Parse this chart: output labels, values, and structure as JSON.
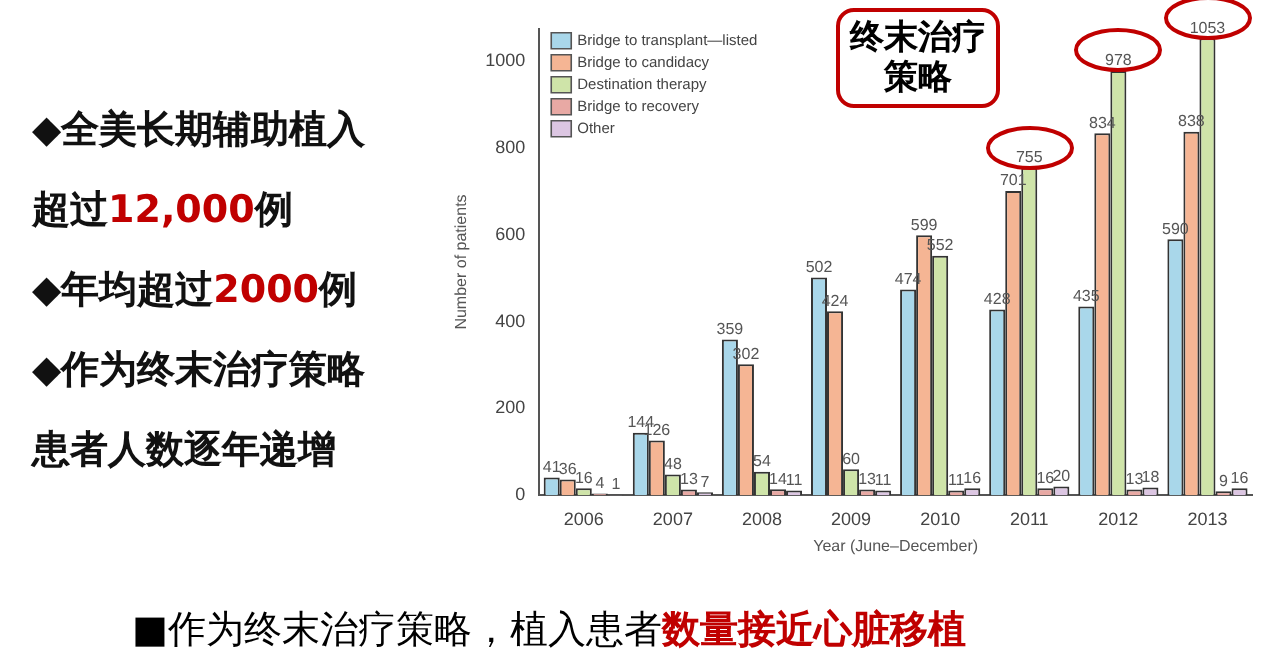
{
  "chart_data": {
    "type": "bar",
    "xlabel": "Year (June–December)",
    "ylabel": "Number of patients",
    "categories": [
      "2006",
      "2007",
      "2008",
      "2009",
      "2010",
      "2011",
      "2012",
      "2013"
    ],
    "series": [
      {
        "name": "Bridge to transplant—listed",
        "color": "#a9d7ea",
        "values": [
          41,
          144,
          359,
          502,
          474,
          428,
          435,
          590
        ]
      },
      {
        "name": "Bridge to candidacy",
        "color": "#f5b594",
        "values": [
          36,
          126,
          302,
          424,
          599,
          701,
          834,
          838
        ]
      },
      {
        "name": "Destination therapy",
        "color": "#cfe4a9",
        "values": [
          16,
          48,
          54,
          60,
          552,
          755,
          978,
          1053
        ]
      },
      {
        "name": "Bridge to recovery",
        "color": "#e8a9a4",
        "values": [
          4,
          13,
          14,
          13,
          11,
          16,
          13,
          9
        ]
      },
      {
        "name": "Other",
        "color": "#dcc6e2",
        "values": [
          1,
          7,
          11,
          11,
          16,
          20,
          18,
          16
        ]
      }
    ],
    "ylim": [
      0,
      1075
    ],
    "yticks": [
      0,
      200,
      400,
      600,
      800,
      1000
    ],
    "grid": false,
    "legend": "top left",
    "data_labels": true,
    "annotations": [
      "◆全美长期辅助植入",
      "超过12,000例",
      "◆年均超过2000例",
      "◆作为终末治疗策略",
      "患者人数逐年递增",
      "终末治疗策略",
      "■作为终末治疗策略，植入患者",
      "数量接近心脏移植"
    ]
  }
}
